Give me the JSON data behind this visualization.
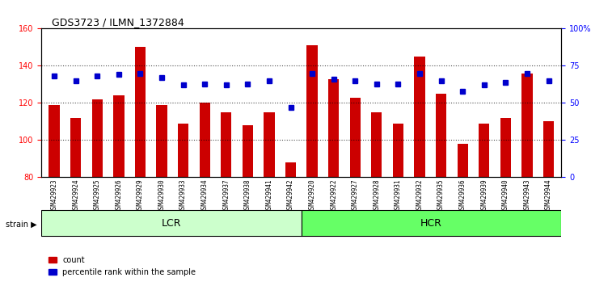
{
  "title": "GDS3723 / ILMN_1372884",
  "categories": [
    "GSM429923",
    "GSM429924",
    "GSM429925",
    "GSM429926",
    "GSM429929",
    "GSM429930",
    "GSM429933",
    "GSM429934",
    "GSM429937",
    "GSM429938",
    "GSM429941",
    "GSM429942",
    "GSM429920",
    "GSM429922",
    "GSM429927",
    "GSM429928",
    "GSM429931",
    "GSM429932",
    "GSM429935",
    "GSM429936",
    "GSM429939",
    "GSM429940",
    "GSM429943",
    "GSM429944"
  ],
  "count_values": [
    119,
    112,
    122,
    124,
    150,
    119,
    109,
    120,
    115,
    108,
    115,
    88,
    151,
    133,
    123,
    115,
    109,
    145,
    125,
    98,
    109,
    112,
    136,
    110
  ],
  "percentile_values": [
    68,
    65,
    68,
    69,
    70,
    67,
    62,
    63,
    62,
    63,
    65,
    47,
    70,
    66,
    65,
    63,
    63,
    70,
    65,
    58,
    62,
    64,
    70,
    65
  ],
  "lcr_count": 12,
  "hcr_count": 12,
  "ylim_left": [
    80,
    160
  ],
  "ylim_right": [
    0,
    100
  ],
  "bar_color": "#cc0000",
  "dot_color": "#0000cc",
  "grid_color": "#000000",
  "bg_color": "#ffffff",
  "lcr_color": "#ccffcc",
  "hcr_color": "#66ff66",
  "tick_area_color": "#cccccc",
  "legend_count_label": "count",
  "legend_pct_label": "percentile rank within the sample",
  "strain_label": "strain",
  "lcr_label": "LCR",
  "hcr_label": "HCR",
  "right_yticks": [
    0,
    25,
    50,
    75,
    100
  ],
  "right_ytick_labels": [
    "0",
    "25",
    "50",
    "75",
    "100%"
  ]
}
